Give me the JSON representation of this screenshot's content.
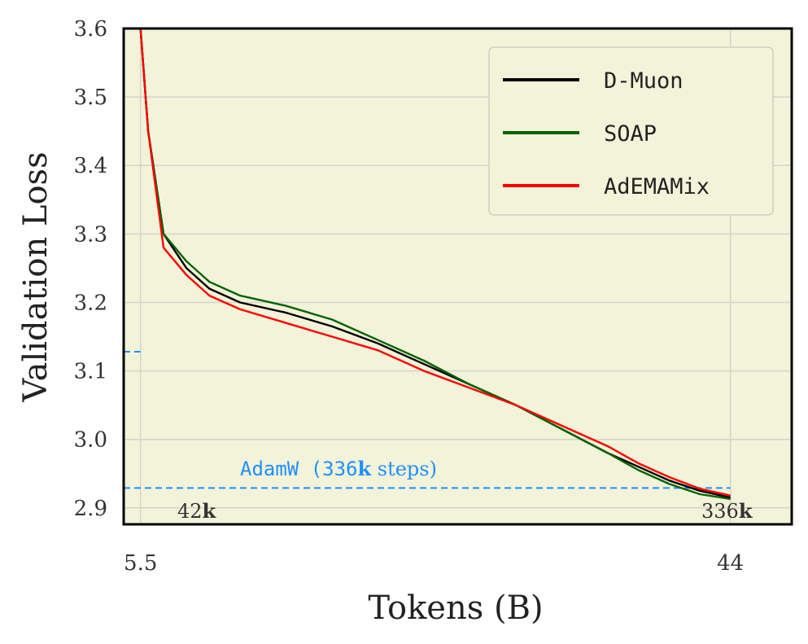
{
  "chart_data": {
    "type": "line",
    "xlabel": "Tokens (B)",
    "ylabel": "Validation Loss",
    "xlim": [
      4.4,
      48.0
    ],
    "ylim": [
      2.876,
      3.6
    ],
    "yticks": [
      "3.6",
      "3.5",
      "3.4",
      "3.3",
      "3.2",
      "3.1",
      "3.0",
      "2.9"
    ],
    "ytick_values": [
      3.6,
      3.5,
      3.4,
      3.3,
      3.2,
      3.1,
      3.0,
      2.9
    ],
    "xticks": [
      "5.5",
      "44"
    ],
    "xtick_values": [
      5.5,
      44
    ],
    "grid": true,
    "legend_position": "top-right",
    "background": "#f3f3da",
    "series": [
      {
        "name": "D-Muon",
        "color": "#000000",
        "runs": [
          {
            "steps": "42k",
            "x": [
              5.5,
              6.0,
              7.0,
              8.5,
              10.0,
              12.0,
              15.0,
              18.0,
              21.0,
              24.0,
              27.0,
              30.0,
              33.0,
              36.0,
              38.0,
              40.0,
              42.0,
              44.0
            ],
            "y": [
              3.6,
              3.45,
              3.3,
              3.25,
              3.22,
              3.2,
              3.185,
              3.165,
              3.14,
              3.11,
              3.08,
              3.05,
              3.015,
              2.98,
              2.96,
              2.94,
              2.925,
              2.915
            ]
          }
        ]
      },
      {
        "name": "SOAP",
        "color": "#006400",
        "runs": [
          {
            "steps": "42k",
            "x": [
              5.5,
              6.0,
              7.0,
              8.5,
              10.0,
              12.0,
              15.0,
              18.0,
              21.0,
              24.0,
              27.0,
              30.0,
              33.0,
              36.0,
              38.0,
              40.0,
              42.0,
              44.0
            ],
            "y": [
              3.6,
              3.45,
              3.3,
              3.26,
              3.23,
              3.21,
              3.195,
              3.175,
              3.145,
              3.115,
              3.08,
              3.05,
              3.015,
              2.98,
              2.955,
              2.935,
              2.92,
              2.913
            ]
          }
        ]
      },
      {
        "name": "AdEMAMix",
        "color": "#ff0000",
        "runs": [
          {
            "steps": "42k",
            "x": [
              5.5,
              6.0,
              7.0,
              8.5,
              10.0,
              12.0,
              15.0,
              18.0,
              21.0,
              24.0,
              27.0,
              30.0,
              33.0,
              36.0,
              38.0,
              40.0,
              42.0,
              44.0
            ],
            "y": [
              3.6,
              3.45,
              3.28,
              3.24,
              3.21,
              3.19,
              3.17,
              3.15,
              3.13,
              3.1,
              3.075,
              3.05,
              3.02,
              2.99,
              2.965,
              2.945,
              2.928,
              2.918
            ]
          }
        ]
      }
    ],
    "reference_lines": [
      {
        "label": "AdamW",
        "steps": "336k",
        "y": 3.128,
        "x_start": 4.4,
        "x_end": 5.5
      },
      {
        "label": "AdamW (336k steps)",
        "steps": "336k",
        "y": 2.929,
        "x_start": 4.4,
        "x_end": 44.0
      }
    ],
    "annotations": {
      "reference_label_main": "AdamW (336",
      "reference_label_bold": "k",
      "reference_label_tail": " steps)",
      "short_run_end_num": "42",
      "short_run_end_bold": "k",
      "long_run_end_num": "336",
      "long_run_end_bold": "k"
    },
    "reference_color": "#1e90ff"
  }
}
